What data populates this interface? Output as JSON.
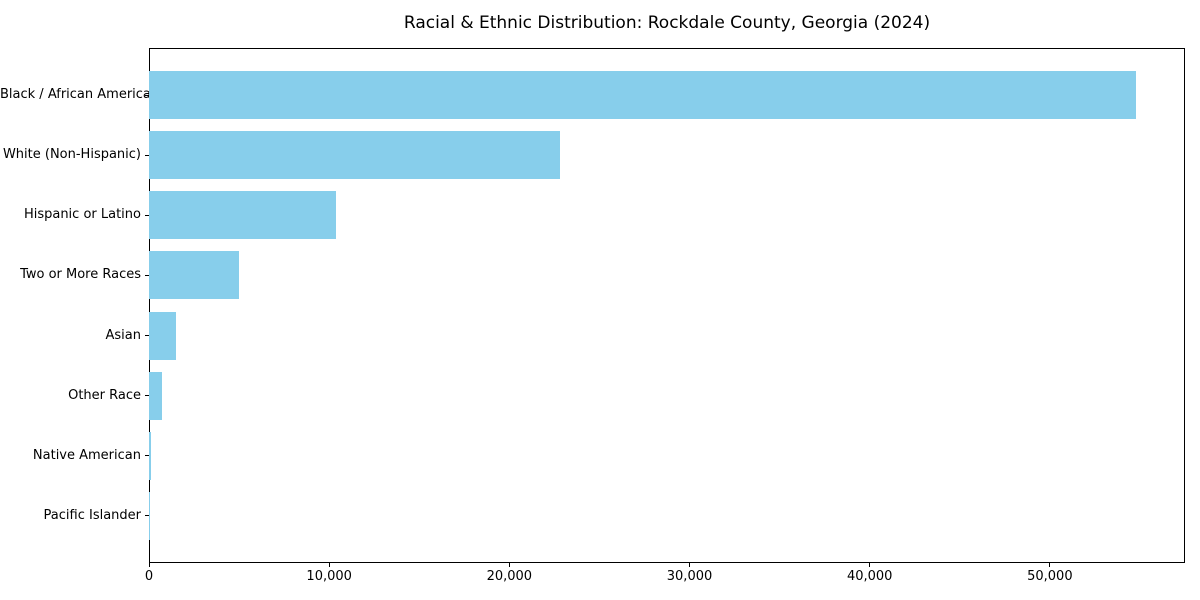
{
  "chart_data": {
    "type": "bar",
    "orientation": "horizontal",
    "title": "Racial & Ethnic Distribution: Rockdale County, Georgia (2024)",
    "categories": [
      "Black / African American",
      "White (Non-Hispanic)",
      "Hispanic or Latino",
      "Two or More Races",
      "Asian",
      "Other Race",
      "Native American",
      "Pacific Islander"
    ],
    "values": [
      54800,
      22800,
      10400,
      5000,
      1500,
      700,
      100,
      40
    ],
    "xlabel": "",
    "ylabel": "",
    "xlim": [
      0,
      57500
    ],
    "xticks": [
      0,
      10000,
      20000,
      30000,
      40000,
      50000
    ],
    "xtick_labels": [
      "0",
      "10,000",
      "20,000",
      "30,000",
      "40,000",
      "50,000"
    ],
    "bar_color": "#87CEEB",
    "spine_color": "#000000",
    "grid": false,
    "legend": null
  }
}
